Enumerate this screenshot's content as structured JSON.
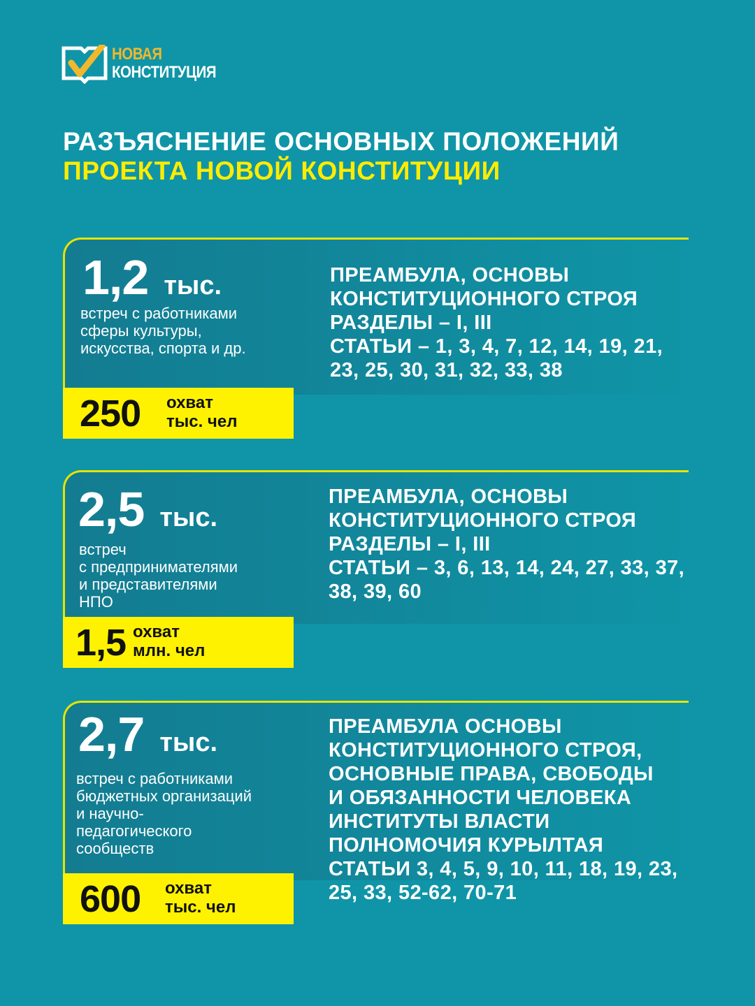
{
  "logo": {
    "line1": "НОВАЯ",
    "line2": "КОНСТИТУЦИЯ",
    "colors": {
      "accent": "#f1b82d"
    }
  },
  "title": {
    "line1": "РАЗЪЯСНЕНИЕ ОСНОВНЫХ ПОЛОЖЕНИЙ",
    "line2": "ПРОЕКТА НОВОЙ КОНСТИТУЦИИ"
  },
  "colors": {
    "background": "#0f95a7",
    "highlight": "#fff200",
    "title_accent": "#ffec00"
  },
  "cards": [
    {
      "count": "1,2",
      "unit": "тыс.",
      "description": [
        "встреч с работниками",
        "сферы культуры,",
        "искусства, спорта и др."
      ],
      "reach_value": "250",
      "reach_label": [
        "охват",
        "тыс. чел"
      ],
      "topics": [
        "ПРЕАМБУЛА, ОСНОВЫ",
        "КОНСТИТУЦИОННОГО СТРОЯ",
        "РАЗДЕЛЫ – I, III",
        "СТАТЬИ – 1, 3, 4, 7, 12, 14, 19, 21,",
        "23, 25, 30, 31, 32, 33, 38"
      ]
    },
    {
      "count": "2,5",
      "unit": "тыс.",
      "description": [
        "встреч",
        "с предпринимателями",
        "и представителями",
        "НПО"
      ],
      "reach_value": "1,5",
      "reach_label": [
        "охват",
        "млн. чел"
      ],
      "topics": [
        "ПРЕАМБУЛА, ОСНОВЫ",
        "КОНСТИТУЦИОННОГО СТРОЯ",
        "РАЗДЕЛЫ – I, III",
        "СТАТЬИ – 3, 6, 13, 14, 24, 27, 33, 37,",
        "38, 39, 60"
      ]
    },
    {
      "count": "2,7",
      "unit": "тыс.",
      "description": [
        "встреч с работниками",
        "бюджетных организаций",
        "и научно-",
        "педагогического",
        "сообществ"
      ],
      "reach_value": "600",
      "reach_label": [
        "охват",
        "тыс. чел"
      ],
      "topics": [
        "ПРЕАМБУЛА ОСНОВЫ",
        "КОНСТИТУЦИОННОГО СТРОЯ,",
        "ОСНОВНЫЕ ПРАВА, СВОБОДЫ",
        "И ОБЯЗАННОСТИ ЧЕЛОВЕКА",
        "ИНСТИТУТЫ ВЛАСТИ",
        "ПОЛНОМОЧИЯ КУРЫЛТАЯ",
        "СТАТЬИ 3, 4, 5, 9, 10, 11, 18, 19, 23,",
        "25, 33, 52-62, 70-71"
      ]
    }
  ]
}
